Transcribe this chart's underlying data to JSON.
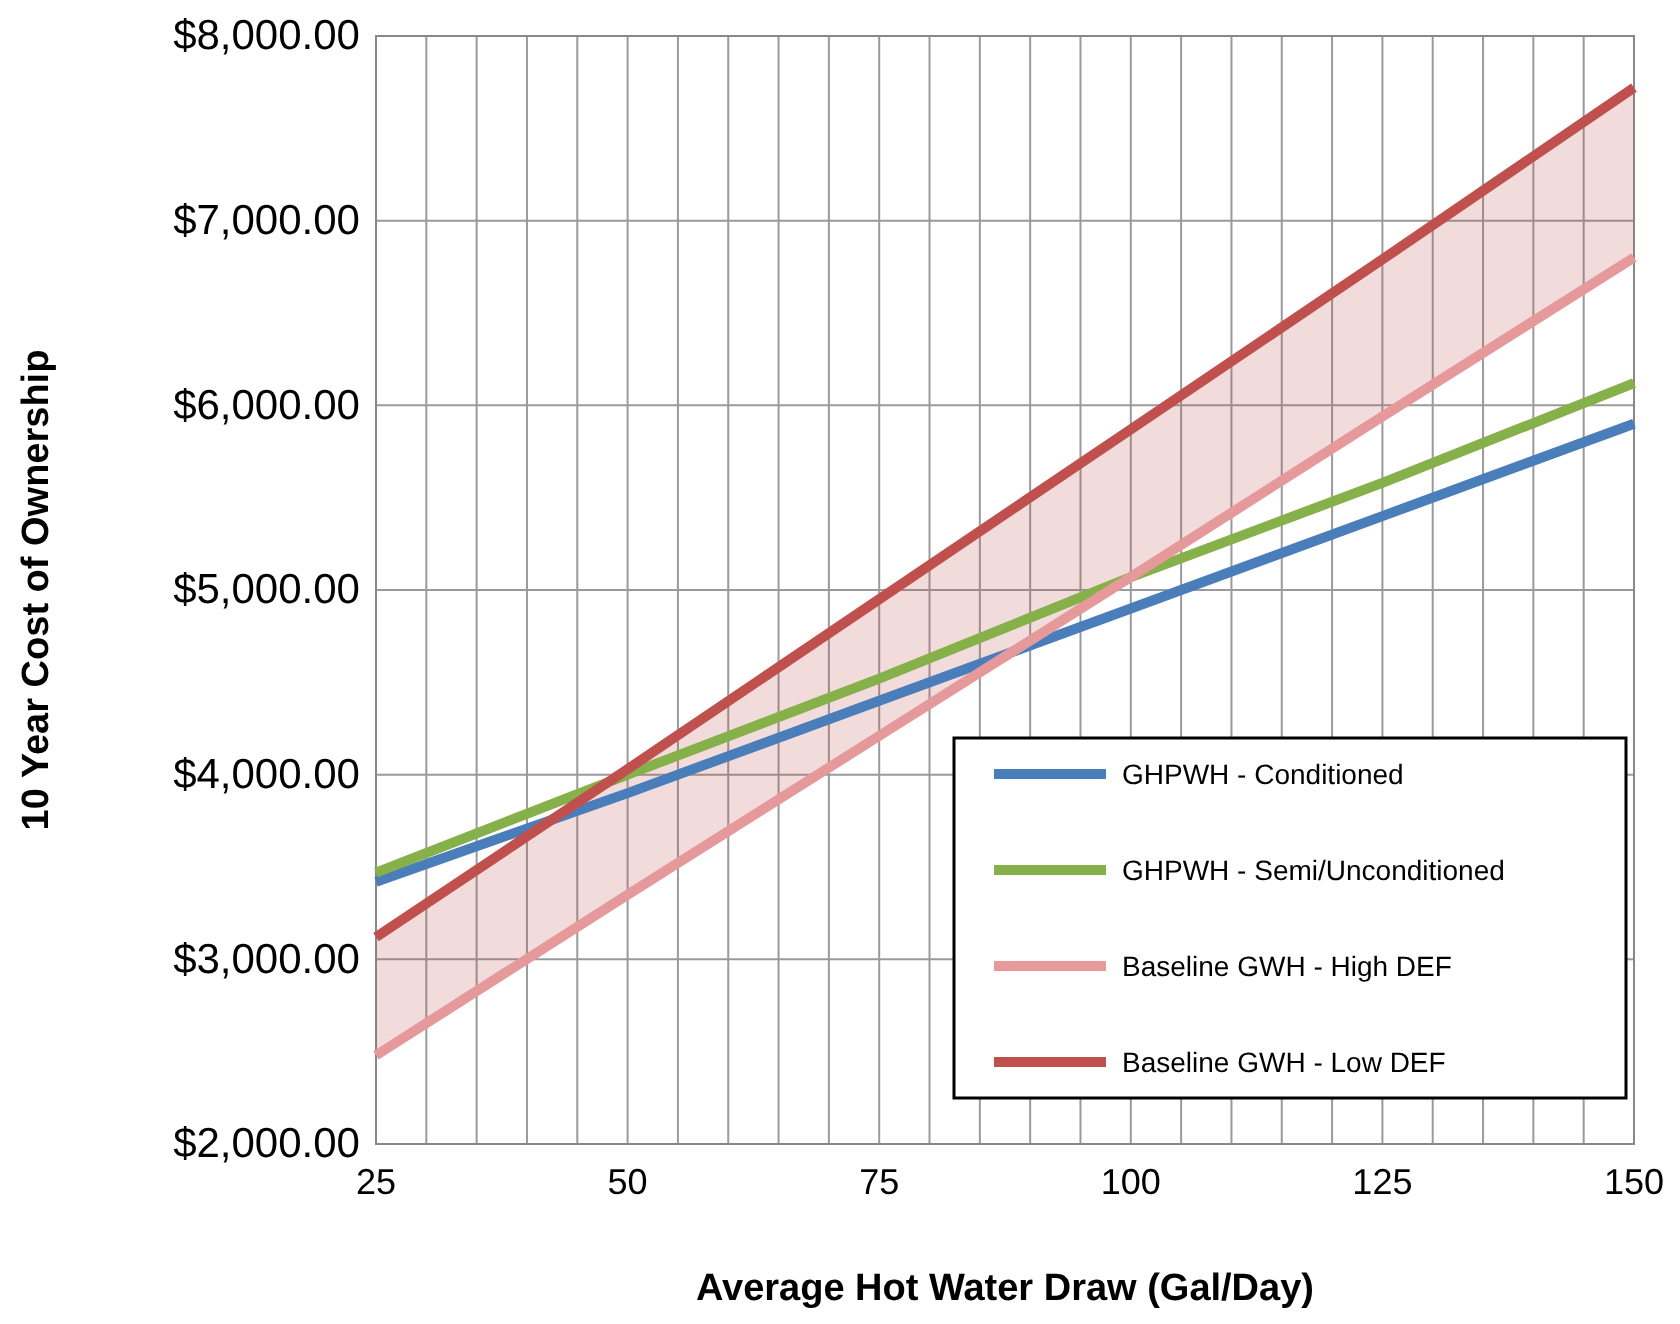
{
  "chart_data": {
    "type": "line",
    "xlabel": "Average Hot Water Draw (Gal/Day)",
    "ylabel": "10 Year Cost of Ownership",
    "x": [
      25,
      50,
      75,
      100,
      125,
      150
    ],
    "xlim": [
      25,
      150
    ],
    "xticks": [
      25,
      {
        "value": 30,
        "label": null
      },
      {
        "value": 35,
        "label": null
      },
      {
        "value": 40,
        "label": null
      },
      {
        "value": 45,
        "label": null
      },
      50,
      {
        "value": 55,
        "label": null
      },
      {
        "value": 60,
        "label": null
      },
      {
        "value": 65,
        "label": null
      },
      {
        "value": 70,
        "label": null
      },
      75,
      {
        "value": 80,
        "label": null
      },
      {
        "value": 85,
        "label": null
      },
      {
        "value": 90,
        "label": null
      },
      {
        "value": 95,
        "label": null
      },
      100,
      {
        "value": 105,
        "label": null
      },
      {
        "value": 110,
        "label": null
      },
      {
        "value": 115,
        "label": null
      },
      {
        "value": 120,
        "label": null
      },
      125,
      {
        "value": 130,
        "label": null
      },
      {
        "value": 135,
        "label": null
      },
      {
        "value": 140,
        "label": null
      },
      {
        "value": 145,
        "label": null
      },
      150
    ],
    "ylim": [
      2000,
      8000
    ],
    "yticks": [
      {
        "value": 2000,
        "label": "$2,000.00"
      },
      {
        "value": 3000,
        "label": "$3,000.00"
      },
      {
        "value": 4000,
        "label": "$4,000.00"
      },
      {
        "value": 5000,
        "label": "$5,000.00"
      },
      {
        "value": 6000,
        "label": "$6,000.00"
      },
      {
        "value": 7000,
        "label": "$7,000.00"
      },
      {
        "value": 8000,
        "label": "$8,000.00"
      }
    ],
    "grid": true,
    "legend": "bottom right",
    "marker": "none",
    "line_style": "solid",
    "series": [
      {
        "name": "GHPWH - Conditioned",
        "color": "#4a7ebb",
        "values": [
          3420,
          3900,
          4400,
          4900,
          5400,
          5900
        ]
      },
      {
        "name": "GHPWH - Semi/Unconditioned",
        "color": "#86b04a",
        "values": [
          3470,
          4000,
          4520,
          5070,
          5580,
          6120
        ]
      },
      {
        "name": "Baseline GWH - High DEF",
        "color": "#e6999a",
        "values": [
          2480,
          3350,
          4210,
          5070,
          5940,
          6800
        ]
      },
      {
        "name": "Baseline GWH - Low DEF",
        "color": "#c0504d",
        "values": [
          3120,
          4030,
          4950,
          5870,
          6790,
          7720
        ],
        "lower": [
          2480,
          3350,
          4210,
          5070,
          5940,
          6800
        ],
        "upper": [
          3120,
          4030,
          4950,
          5870,
          6790,
          7720
        ]
      }
    ]
  }
}
